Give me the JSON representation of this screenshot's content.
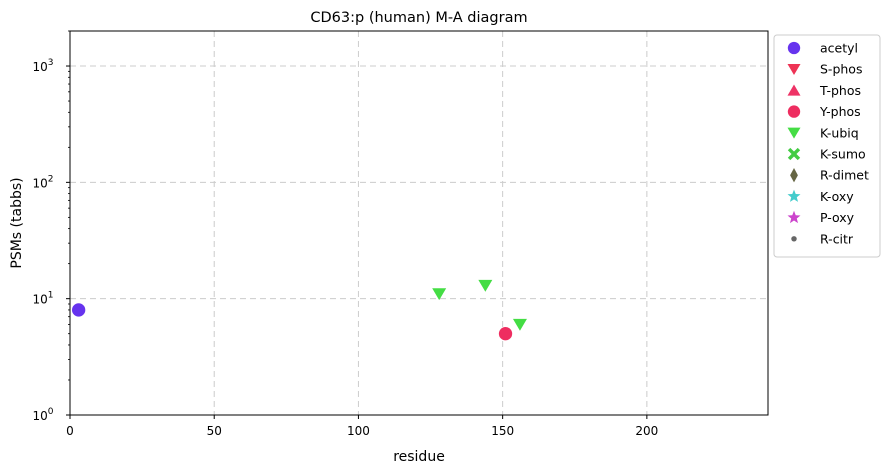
{
  "chart_data": {
    "type": "scatter",
    "title": "CD63:p (human) M-A diagram",
    "xlabel": "residue",
    "ylabel": "PSMs (tabbs)",
    "xlim": [
      0,
      242
    ],
    "ylim": [
      1,
      2000
    ],
    "y_scale": "log",
    "x_ticks": [
      0,
      50,
      100,
      150,
      200
    ],
    "y_ticks": [
      {
        "value": 1,
        "base": "10",
        "exp": "0"
      },
      {
        "value": 10,
        "base": "10",
        "exp": "1"
      },
      {
        "value": 100,
        "base": "10",
        "exp": "2"
      },
      {
        "value": 1000,
        "base": "10",
        "exp": "3"
      }
    ],
    "grid": true,
    "legend_position": "outside-right",
    "series": [
      {
        "name": "acetyl",
        "marker": "circle",
        "color": "#6633ee",
        "points": [
          {
            "x": 3,
            "y": 8
          }
        ]
      },
      {
        "name": "S-phos",
        "marker": "triangle-down",
        "color": "#ee3355",
        "points": []
      },
      {
        "name": "T-phos",
        "marker": "triangle-up",
        "color": "#ee3366",
        "points": []
      },
      {
        "name": "Y-phos",
        "marker": "circle",
        "color": "#ee2d60",
        "points": [
          {
            "x": 151,
            "y": 5
          }
        ]
      },
      {
        "name": "K-ubiq",
        "marker": "triangle-down",
        "color": "#44dd44",
        "points": [
          {
            "x": 128,
            "y": 11
          },
          {
            "x": 144,
            "y": 13
          },
          {
            "x": 156,
            "y": 6
          }
        ]
      },
      {
        "name": "K-sumo",
        "marker": "x-filled",
        "color": "#44cc44",
        "points": []
      },
      {
        "name": "R-dimet",
        "marker": "diamond",
        "color": "#666644",
        "points": []
      },
      {
        "name": "K-oxy",
        "marker": "star",
        "color": "#44cccc",
        "points": []
      },
      {
        "name": "P-oxy",
        "marker": "star",
        "color": "#cc44cc",
        "points": []
      },
      {
        "name": "R-citr",
        "marker": "small-circle",
        "color": "#666666",
        "points": []
      }
    ]
  }
}
